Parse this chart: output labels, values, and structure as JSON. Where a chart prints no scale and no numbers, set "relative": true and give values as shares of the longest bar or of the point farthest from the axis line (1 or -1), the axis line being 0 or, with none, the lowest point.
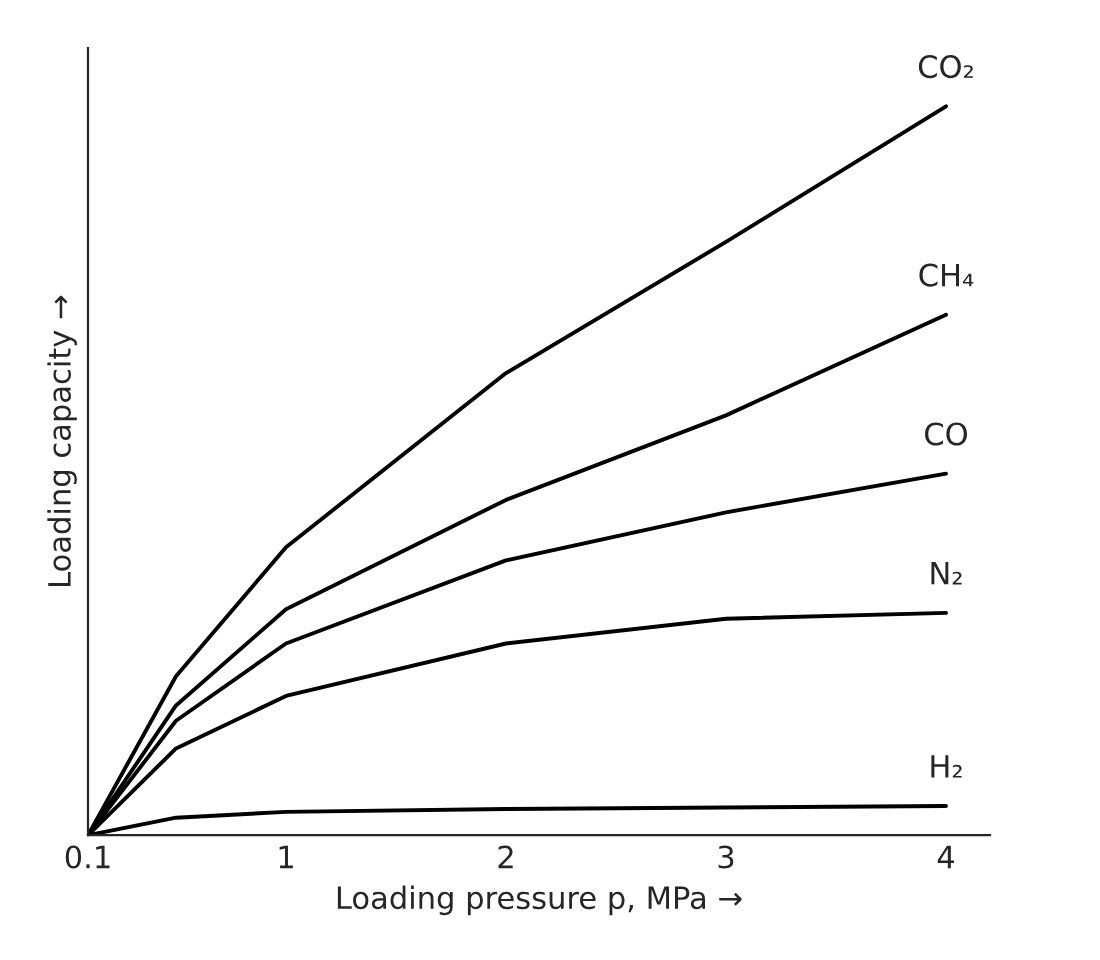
{
  "chart_data": {
    "type": "line",
    "relative": true,
    "xlabel": "Loading pressure p, MPa →",
    "ylabel": "Loading capacity →",
    "xlim": [
      0.1,
      4.2
    ],
    "xticks": [
      0.1,
      1,
      2,
      3,
      4
    ],
    "tick_labels": "x",
    "grid": false,
    "legend": false,
    "marker": "none",
    "line_style": "solid",
    "x": [
      0.1,
      0.5,
      1,
      2,
      3,
      4
    ],
    "series": [
      {
        "name": "CO₂",
        "color": "#000000",
        "values": [
          0,
          0.218,
          0.395,
          0.634,
          0.814,
          1
        ]
      },
      {
        "name": "CH₄",
        "color": "#000000",
        "values": [
          0,
          0.178,
          0.31,
          0.46,
          0.576,
          0.714
        ]
      },
      {
        "name": "CO",
        "color": "#000000",
        "values": [
          0,
          0.157,
          0.263,
          0.377,
          0.443,
          0.496
        ]
      },
      {
        "name": "N₂",
        "color": "#000000",
        "values": [
          0,
          0.119,
          0.191,
          0.263,
          0.297,
          0.305
        ]
      },
      {
        "name": "H₂",
        "color": "#000000",
        "values": [
          0,
          0.024,
          0.032,
          0.036,
          0.038,
          0.04
        ]
      }
    ]
  }
}
